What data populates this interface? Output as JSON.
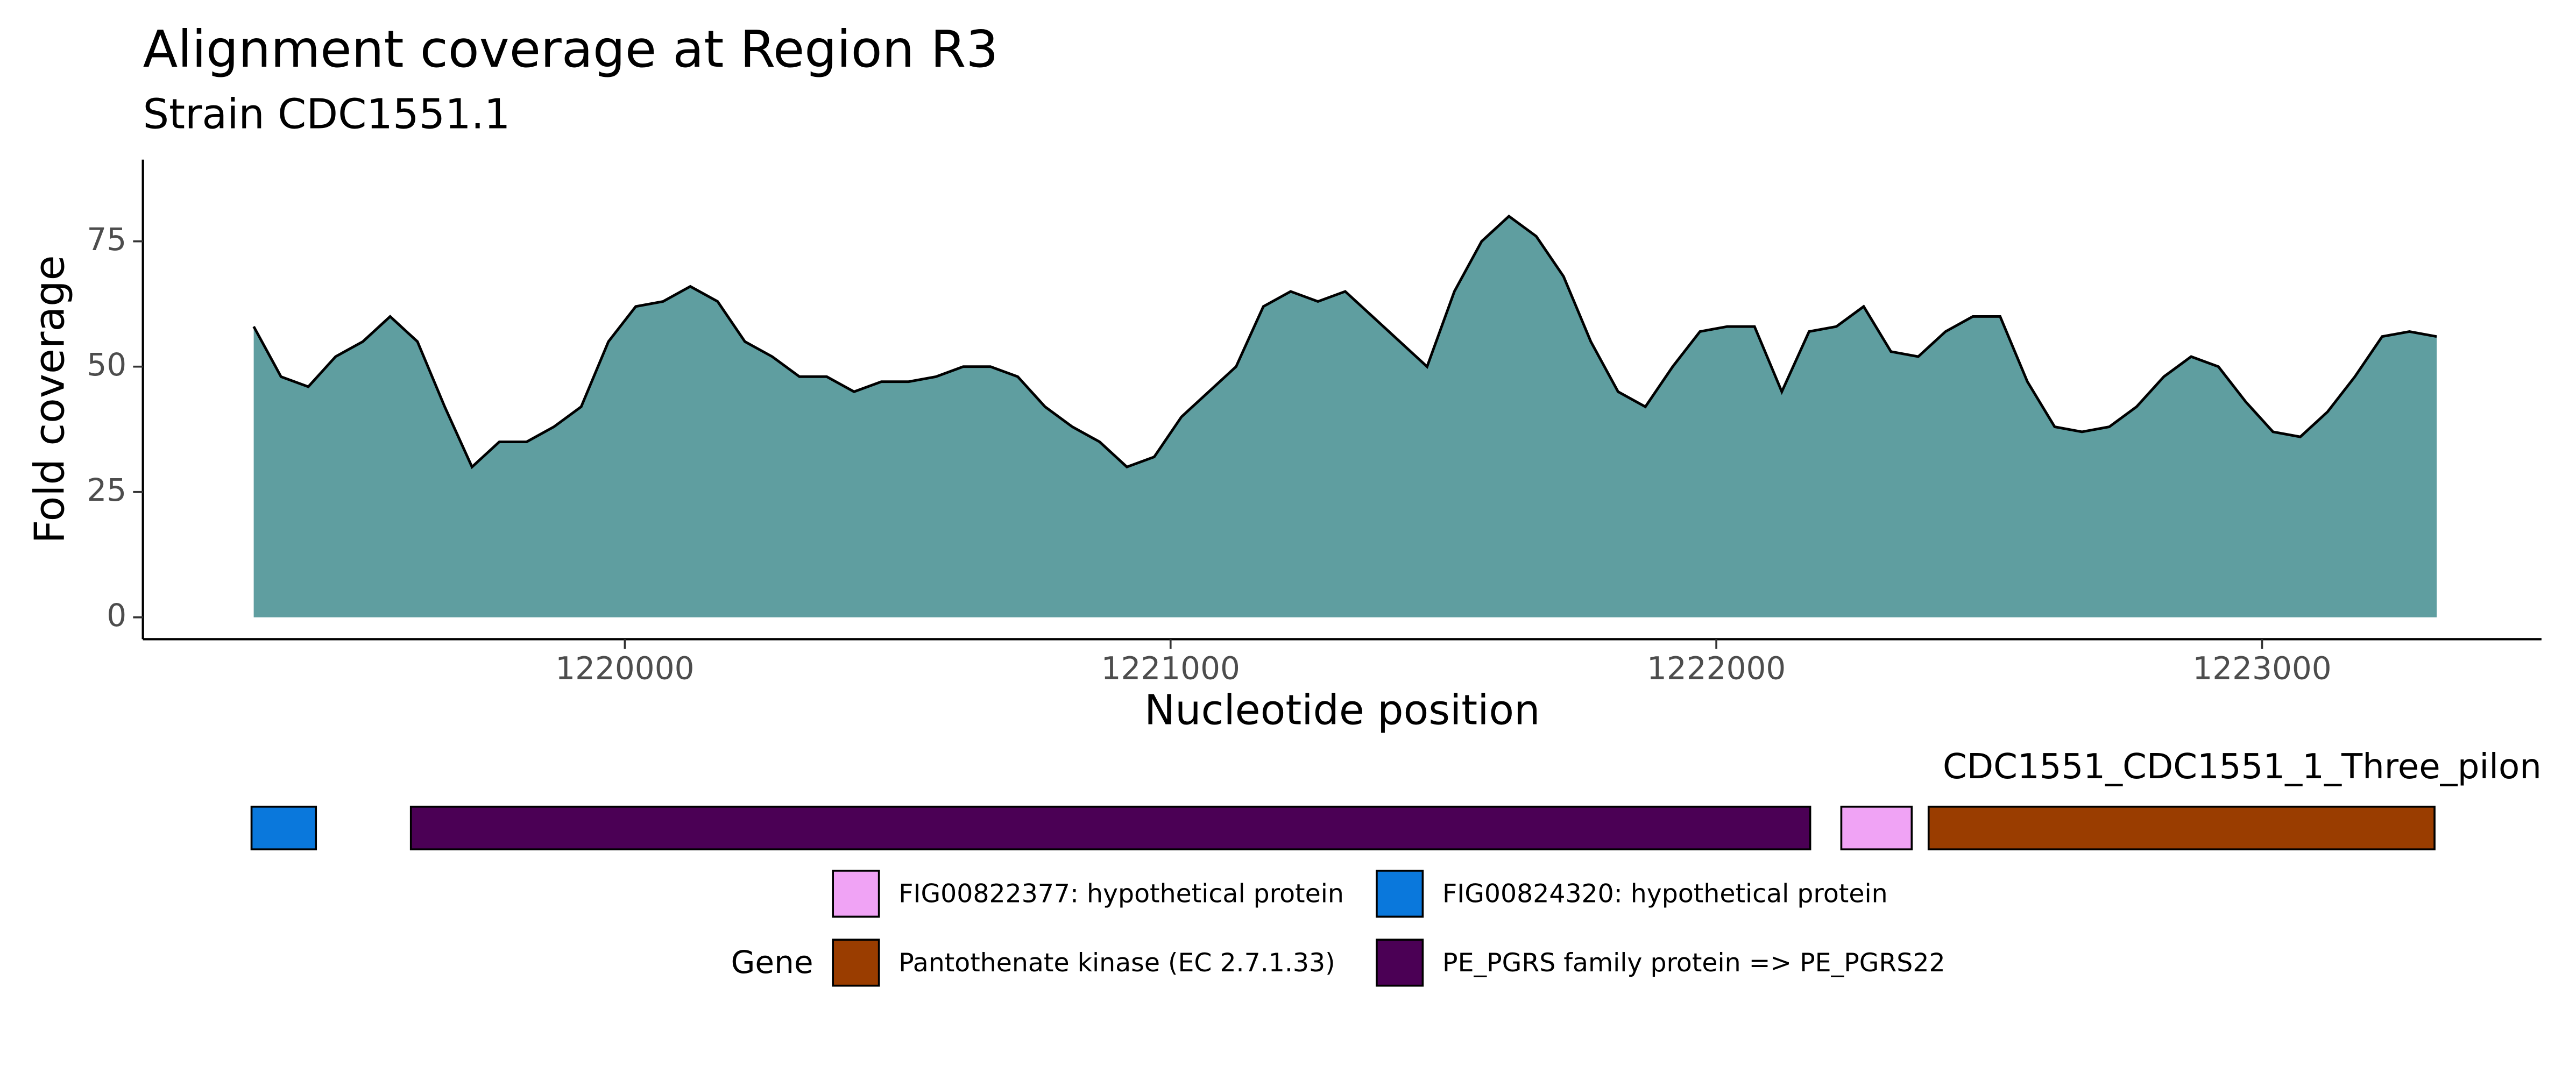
{
  "chart_data": {
    "type": "area",
    "title": "Alignment coverage at Region R3",
    "subtitle": "Strain CDC1551.1",
    "x_label": "Nucleotide position",
    "y_label": "Fold coverage",
    "fill_color": "#5f9ea0",
    "line_color": "#000000",
    "xlim": [
      1219117,
      1223512
    ],
    "ylim": [
      -4.35,
      91.3
    ],
    "xticks": [
      1220000,
      1221000,
      1222000,
      1223000
    ],
    "yticks": [
      0,
      25,
      50,
      75
    ],
    "grid": false,
    "x": [
      1219320,
      1219370,
      1219420,
      1219470,
      1219520,
      1219570,
      1219620,
      1219670,
      1219720,
      1219770,
      1219820,
      1219870,
      1219920,
      1219970,
      1220020,
      1220070,
      1220120,
      1220170,
      1220220,
      1220270,
      1220320,
      1220370,
      1220420,
      1220470,
      1220520,
      1220570,
      1220620,
      1220670,
      1220720,
      1220770,
      1220820,
      1220870,
      1220920,
      1220970,
      1221020,
      1221070,
      1221120,
      1221170,
      1221220,
      1221270,
      1221320,
      1221370,
      1221420,
      1221470,
      1221520,
      1221570,
      1221620,
      1221670,
      1221720,
      1221770,
      1221820,
      1221870,
      1221920,
      1221970,
      1222020,
      1222070,
      1222120,
      1222170,
      1222220,
      1222270,
      1222320,
      1222370,
      1222420,
      1222470,
      1222520,
      1222570,
      1222620,
      1222670,
      1222720,
      1222770,
      1222820,
      1222870,
      1222920,
      1222970,
      1223020,
      1223070,
      1223120,
      1223170,
      1223220,
      1223270,
      1223320
    ],
    "values": [
      58,
      48,
      46,
      52,
      55,
      60,
      55,
      42,
      30,
      35,
      35,
      38,
      42,
      55,
      62,
      63,
      66,
      63,
      55,
      52,
      48,
      48,
      45,
      47,
      47,
      48,
      50,
      50,
      48,
      42,
      38,
      35,
      30,
      32,
      40,
      45,
      50,
      62,
      65,
      63,
      65,
      60,
      55,
      50,
      65,
      75,
      80,
      76,
      68,
      55,
      45,
      42,
      50,
      57,
      58,
      58,
      45,
      57,
      58,
      62,
      53,
      52,
      57,
      60,
      60,
      47,
      38,
      37,
      38,
      42,
      48,
      52,
      50,
      43,
      37,
      36,
      41,
      48,
      56,
      57,
      56
    ],
    "genes": {
      "title": "CDC1551_CDC1551_1_Three_pilon",
      "legend_title": "Gene",
      "features": [
        {
          "name": "FIG00822377: hypothetical protein",
          "color": "#f0a3f5",
          "start": 1222229,
          "end": 1222358
        },
        {
          "name": "FIG00824320: hypothetical protein",
          "color": "#0a78dc",
          "start": 1219316,
          "end": 1219434
        },
        {
          "name": "Pantothenate kinase (EC 2.7.1.33)",
          "color": "#9a3d00",
          "start": 1222389,
          "end": 1223316
        },
        {
          "name": "PE_PGRS family protein => PE_PGRS22",
          "color": "#4b0055",
          "start": 1219608,
          "end": 1222172
        }
      ]
    }
  }
}
